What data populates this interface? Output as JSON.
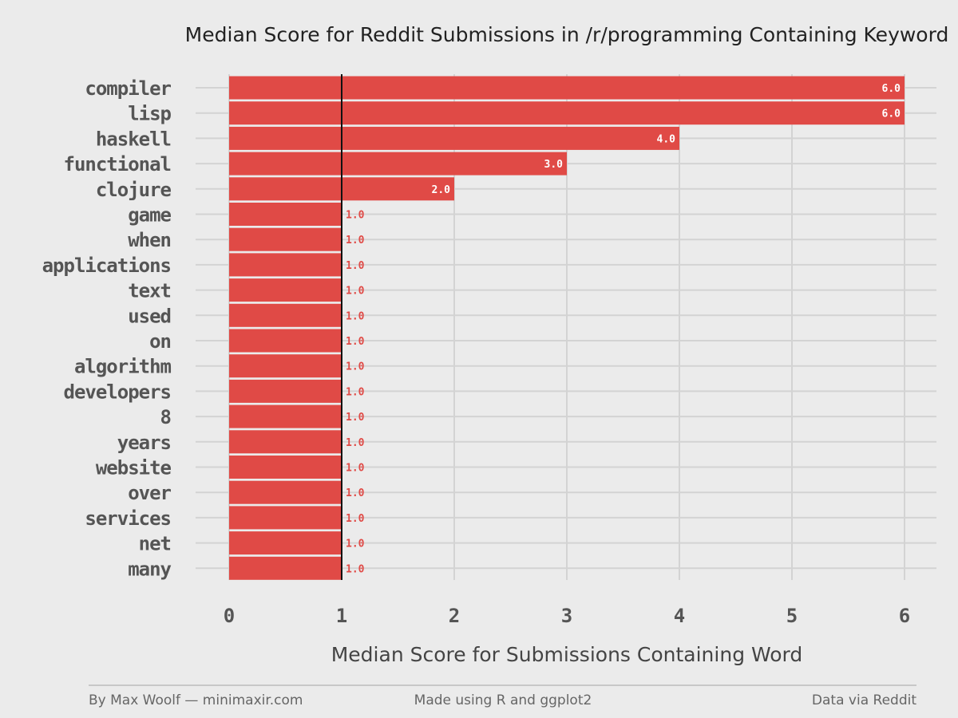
{
  "chart_data": {
    "type": "bar",
    "orientation": "horizontal",
    "title": "Median Score for Reddit Submissions in /r/programming Containing Keyword",
    "xlabel": "Median Score for Submissions Containing Word",
    "ylabel": "",
    "categories": [
      "compiler",
      "lisp",
      "haskell",
      "functional",
      "clojure",
      "game",
      "when",
      "applications",
      "text",
      "used",
      "on",
      "algorithm",
      "developers",
      "8",
      "years",
      "website",
      "over",
      "services",
      "net",
      "many"
    ],
    "values": [
      6.0,
      6.0,
      4.0,
      3.0,
      2.0,
      1.0,
      1.0,
      1.0,
      1.0,
      1.0,
      1.0,
      1.0,
      1.0,
      1.0,
      1.0,
      1.0,
      1.0,
      1.0,
      1.0,
      1.0
    ],
    "data_labels": [
      "6.0",
      "6.0",
      "4.0",
      "3.0",
      "2.0",
      "1.0",
      "1.0",
      "1.0",
      "1.0",
      "1.0",
      "1.0",
      "1.0",
      "1.0",
      "1.0",
      "1.0",
      "1.0",
      "1.0",
      "1.0",
      "1.0",
      "1.0"
    ],
    "xlim": [
      0,
      6
    ],
    "x_ticks": [
      0,
      1,
      2,
      3,
      4,
      5,
      6
    ],
    "reference_line": 1,
    "grid": true,
    "colors": {
      "bar": "#e04a46",
      "background": "#ebebeb",
      "grid": "#d3d3d3",
      "reference_line": "#111111"
    }
  },
  "footer": {
    "left": "By Max Woolf — minimaxir.com",
    "center": "Made using R and ggplot2",
    "right": "Data via Reddit"
  }
}
